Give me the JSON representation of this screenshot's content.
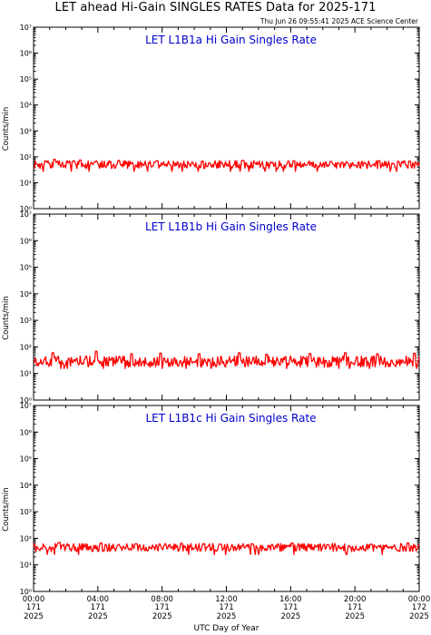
{
  "header": {
    "title": "LET ahead Hi-Gain SINGLES RATES Data for 2025-171",
    "timestamp": "Thu Jun 26 09:55:41 2025 ACE Science Center"
  },
  "colors": {
    "series": "#ff0000",
    "panel_title": "#0000cc",
    "axis": "#000000"
  },
  "chart_data": [
    {
      "type": "line",
      "title": "LET L1B1a Hi Gain Singles Rate",
      "ylabel": "Counts/min",
      "yscale": "log",
      "ylim": [
        1,
        10000000
      ],
      "ytick_labels": [
        "10⁰",
        "10¹",
        "10²",
        "10³",
        "10⁴",
        "10⁵",
        "10⁶",
        "10⁷"
      ],
      "xlim": [
        0,
        24
      ],
      "baseline": 50,
      "noise": 0.22,
      "spike_hours": [
        1.3,
        2.9,
        5.3,
        7.7,
        10.5,
        13.0,
        16.2,
        18.5,
        21.5,
        23.4
      ],
      "spike_values": [
        80,
        75,
        72,
        70,
        68,
        72,
        70,
        66,
        70,
        68
      ]
    },
    {
      "type": "line",
      "title": "LET L1B1b Hi Gain Singles Rate",
      "ylabel": "Counts/min",
      "yscale": "log",
      "ylim": [
        1,
        10000000
      ],
      "ytick_labels": [
        "10⁰",
        "10¹",
        "10²",
        "10³",
        "10⁴",
        "10⁵",
        "10⁶",
        "10⁷"
      ],
      "xlim": [
        0,
        24
      ],
      "baseline": 28,
      "noise": 0.3,
      "spike_hours": [
        1.2,
        3.9,
        6.1,
        7.9,
        10.3,
        12.8,
        14.5,
        17.2,
        19.4,
        21.4,
        23.7
      ],
      "spike_values": [
        60,
        68,
        55,
        58,
        55,
        60,
        52,
        56,
        60,
        55,
        58
      ]
    },
    {
      "type": "line",
      "title": "LET L1B1c Hi Gain Singles Rate",
      "ylabel": "Counts/min",
      "yscale": "log",
      "ylim": [
        1,
        10000000
      ],
      "ytick_labels": [
        "10⁰",
        "10¹",
        "10²",
        "10³",
        "10⁴",
        "10⁵",
        "10⁶",
        "10⁷"
      ],
      "xlim": [
        0,
        24
      ],
      "baseline": 45,
      "noise": 0.22,
      "spike_hours": [
        1.6,
        4.2,
        6.4,
        9.2,
        11.6,
        13.6,
        16.1,
        18.3,
        21.0,
        23.3
      ],
      "spike_values": [
        70,
        66,
        62,
        65,
        60,
        62,
        66,
        58,
        60,
        66
      ]
    }
  ],
  "xaxis": {
    "label": "UTC Day of Year",
    "ticks": [
      {
        "hour": 0,
        "time": "00:00",
        "doy": "171",
        "year": "2025"
      },
      {
        "hour": 4,
        "time": "04:00",
        "doy": "171",
        "year": "2025"
      },
      {
        "hour": 8,
        "time": "08:00",
        "doy": "171",
        "year": "2025"
      },
      {
        "hour": 12,
        "time": "12:00",
        "doy": "171",
        "year": "2025"
      },
      {
        "hour": 16,
        "time": "16:00",
        "doy": "171",
        "year": "2025"
      },
      {
        "hour": 20,
        "time": "20:00",
        "doy": "171",
        "year": "2025"
      },
      {
        "hour": 24,
        "time": "00:00",
        "doy": "172",
        "year": "2025"
      }
    ]
  }
}
